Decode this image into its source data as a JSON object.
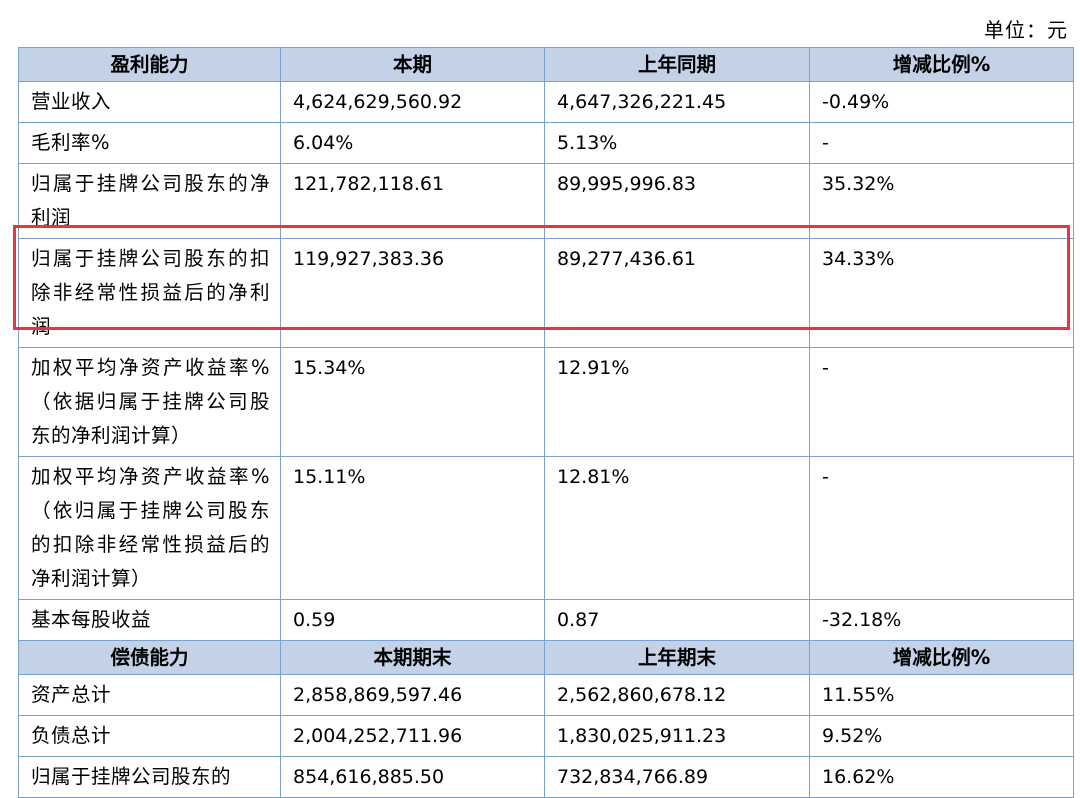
{
  "unit_label": "单位：元",
  "profitability": {
    "headers": [
      "盈利能力",
      "本期",
      "上年同期",
      "增减比例%"
    ],
    "rows": [
      [
        "营业收入",
        "4,624,629,560.92",
        "4,647,326,221.45",
        "-0.49%"
      ],
      [
        "毛利率%",
        "6.04%",
        "5.13%",
        "-"
      ],
      [
        "归属于挂牌公司股东的净利润",
        "121,782,118.61",
        "89,995,996.83",
        "35.32%"
      ],
      [
        "归属于挂牌公司股东的扣除非经常性损益后的净利润",
        "119,927,383.36",
        "89,277,436.61",
        "34.33%"
      ],
      [
        "加权平均净资产收益率%（依据归属于挂牌公司股东的净利润计算）",
        "15.34%",
        "12.91%",
        "-"
      ],
      [
        "加权平均净资产收益率%（依归属于挂牌公司股东的扣除非经常性损益后的净利润计算）",
        "15.11%",
        "12.81%",
        "-"
      ],
      [
        "基本每股收益",
        "0.59",
        "0.87",
        "-32.18%"
      ]
    ]
  },
  "solvency": {
    "headers": [
      "偿债能力",
      "本期期末",
      "上年期末",
      "增减比例%"
    ],
    "rows": [
      [
        "资产总计",
        "2,858,869,597.46",
        "2,562,860,678.12",
        "11.55%"
      ],
      [
        "负债总计",
        "2,004,252,711.96",
        "1,830,025,911.23",
        "9.52%"
      ],
      [
        "归属于挂牌公司股东的",
        "854,616,885.50",
        "732,834,766.89",
        "16.62%"
      ]
    ]
  },
  "highlight_color": "#e03a3e",
  "header_bg": "#c4d2e8",
  "border_color": "#7aa0cf"
}
